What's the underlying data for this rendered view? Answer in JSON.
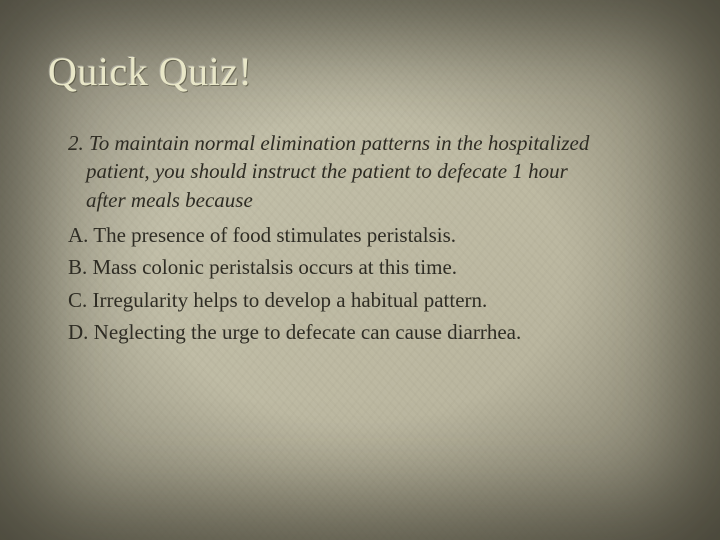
{
  "slide": {
    "title": "Quick Quiz!",
    "question_number": "2.",
    "question_text": "To maintain normal elimination patterns in the hospitalized patient, you should instruct the patient to defecate 1 hour after meals because",
    "options": [
      "A. The presence of food stimulates peristalsis.",
      "B. Mass colonic peristalsis occurs at this time.",
      "C. Irregularity helps to develop a habitual pattern.",
      "D. Neglecting the urge to defecate can cause diarrhea."
    ]
  },
  "style": {
    "background_base": "#c2bfa9",
    "vignette_color": "#3a382c",
    "title_color": "#e9e7c8",
    "text_color": "#2e2c24",
    "title_fontsize": 40,
    "body_fontsize": 21,
    "font_family": "Georgia, serif"
  }
}
